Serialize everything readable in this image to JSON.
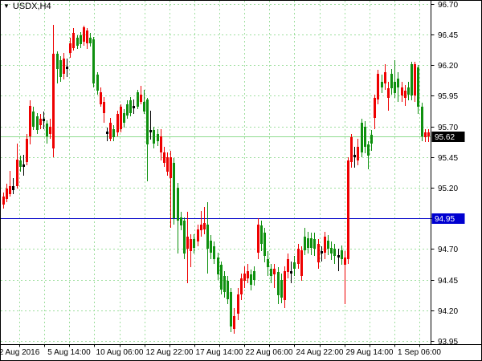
{
  "window": {
    "title": "USDX,H4",
    "dropdown_icon": "▼"
  },
  "price_axis": {
    "tick_labels": [
      "96.70",
      "96.45",
      "96.20",
      "95.95",
      "95.70",
      "95.45",
      "95.20",
      "94.95",
      "94.70",
      "94.45",
      "94.20",
      "93.95"
    ],
    "bid_tag": "95.62",
    "hline_tag": "94.95"
  },
  "time_axis": {
    "labels": [
      "2 Aug 2016",
      "5 Aug 14:00",
      "10 Aug 06:00",
      "12 Aug 22:00",
      "17 Aug 14:00",
      "22 Aug 06:00",
      "24 Aug 22:00",
      "29 Aug 14:00",
      "1 Sep 06:00"
    ]
  },
  "colors": {
    "background": "#ffffff",
    "border": "#000000",
    "grid": "#9fdf9f",
    "bid_line": "#8fdc8f",
    "hline": "#0000c8",
    "bull_bear_red": "#ee0000",
    "bull_bear_green": "#0e900e",
    "doji_black": "#000000",
    "axis_text": "#000000",
    "bid_tag_bg": "#000000",
    "bid_tag_text": "#ffffff",
    "hline_tag_bg": "#0000d0",
    "hline_tag_text": "#ffffff"
  },
  "chart_data": {
    "type": "candlestick",
    "title": "USDX,H4",
    "symbol": "USDX",
    "timeframe": "H4",
    "ylim": [
      93.95,
      96.7
    ],
    "grid_step": 0.25,
    "grid": "on",
    "bid_price": 95.62,
    "hline_price": 94.95,
    "x_labels": [
      "2 Aug 2016",
      "5 Aug 14:00",
      "10 Aug 06:00",
      "12 Aug 22:00",
      "17 Aug 14:00",
      "22 Aug 06:00",
      "24 Aug 22:00",
      "29 Aug 14:00",
      "1 Sep 06:00"
    ],
    "candle_format": [
      "body_top",
      "body_bottom",
      "high",
      "low",
      "color r=red g=green k=black-doji"
    ],
    "candles": [
      [
        95.13,
        95.06,
        95.16,
        95.03,
        "r"
      ],
      [
        95.19,
        95.11,
        95.23,
        95.08,
        "r"
      ],
      [
        95.21,
        95.15,
        95.34,
        95.13,
        "r"
      ],
      [
        95.21,
        95.18,
        95.28,
        95.15,
        "k"
      ],
      [
        95.43,
        95.21,
        95.56,
        95.19,
        "r"
      ],
      [
        95.42,
        95.37,
        95.46,
        95.33,
        "g"
      ],
      [
        95.39,
        95.37,
        95.47,
        95.3,
        "k"
      ],
      [
        95.6,
        95.41,
        95.64,
        95.38,
        "r"
      ],
      [
        95.87,
        95.62,
        95.91,
        95.55,
        "r"
      ],
      [
        95.82,
        95.7,
        95.86,
        95.67,
        "g"
      ],
      [
        95.78,
        95.67,
        95.81,
        95.64,
        "g"
      ],
      [
        95.76,
        95.71,
        95.8,
        95.68,
        "r"
      ],
      [
        95.76,
        95.74,
        95.82,
        95.68,
        "k"
      ],
      [
        95.72,
        95.62,
        95.75,
        95.56,
        "g"
      ],
      [
        95.7,
        95.64,
        95.76,
        95.6,
        "r"
      ],
      [
        96.29,
        95.52,
        96.53,
        95.45,
        "r"
      ],
      [
        96.29,
        96.17,
        96.31,
        96.05,
        "g"
      ],
      [
        96.24,
        96.1,
        96.27,
        96.06,
        "g"
      ],
      [
        96.25,
        96.13,
        96.3,
        96.08,
        "r"
      ],
      [
        96.19,
        96.17,
        96.25,
        96.1,
        "k"
      ],
      [
        96.38,
        96.3,
        96.42,
        96.26,
        "r"
      ],
      [
        96.46,
        96.34,
        96.5,
        96.32,
        "r"
      ],
      [
        96.42,
        96.36,
        96.44,
        96.33,
        "g"
      ],
      [
        96.44,
        96.37,
        96.47,
        96.34,
        "g"
      ],
      [
        96.51,
        96.39,
        96.52,
        96.36,
        "r"
      ],
      [
        96.48,
        96.38,
        96.5,
        96.33,
        "r"
      ],
      [
        96.42,
        96.38,
        96.46,
        96.35,
        "g"
      ],
      [
        96.41,
        96.05,
        96.43,
        96.02,
        "g"
      ],
      [
        96.12,
        95.99,
        96.14,
        95.96,
        "g"
      ],
      [
        95.98,
        95.88,
        96.02,
        95.86,
        "r"
      ],
      [
        95.9,
        95.81,
        95.94,
        95.73,
        "r"
      ],
      [
        95.66,
        95.64,
        95.69,
        95.58,
        "k"
      ],
      [
        95.73,
        95.6,
        95.77,
        95.58,
        "r"
      ],
      [
        95.68,
        95.61,
        95.71,
        95.58,
        "g"
      ],
      [
        95.8,
        95.65,
        95.83,
        95.62,
        "r"
      ],
      [
        95.86,
        95.68,
        95.88,
        95.65,
        "r"
      ],
      [
        95.81,
        95.73,
        95.84,
        95.69,
        "g"
      ],
      [
        95.88,
        95.79,
        95.91,
        95.76,
        "g"
      ],
      [
        95.91,
        95.81,
        95.94,
        95.78,
        "g"
      ],
      [
        95.87,
        95.85,
        95.92,
        95.8,
        "k"
      ],
      [
        95.98,
        95.86,
        96.0,
        95.84,
        "g"
      ],
      [
        95.96,
        95.9,
        96.03,
        95.88,
        "r"
      ],
      [
        95.9,
        95.82,
        96.0,
        95.8,
        "g"
      ],
      [
        95.92,
        95.55,
        95.93,
        95.25,
        "g"
      ],
      [
        95.67,
        95.65,
        95.83,
        95.59,
        "k"
      ],
      [
        95.67,
        95.56,
        95.7,
        95.52,
        "g"
      ],
      [
        95.64,
        95.58,
        95.68,
        95.54,
        "g"
      ],
      [
        95.62,
        95.49,
        95.68,
        95.42,
        "r"
      ],
      [
        95.49,
        95.4,
        95.53,
        95.37,
        "r"
      ],
      [
        95.45,
        95.33,
        95.49,
        95.3,
        "r"
      ],
      [
        95.45,
        95.28,
        95.5,
        94.87,
        "r"
      ],
      [
        95.4,
        94.95,
        95.44,
        94.9,
        "g"
      ],
      [
        95.2,
        94.93,
        95.24,
        94.66,
        "g"
      ],
      [
        94.96,
        94.89,
        95.0,
        94.85,
        "g"
      ],
      [
        94.93,
        94.66,
        94.96,
        94.62,
        "g"
      ],
      [
        94.8,
        94.7,
        95.0,
        94.42,
        "r"
      ],
      [
        94.78,
        94.68,
        94.82,
        94.55,
        "r"
      ],
      [
        94.78,
        94.71,
        94.82,
        94.66,
        "g"
      ],
      [
        94.86,
        94.76,
        94.9,
        94.72,
        "r"
      ],
      [
        94.9,
        94.85,
        95.01,
        94.8,
        "r"
      ],
      [
        94.91,
        94.86,
        95.04,
        94.82,
        "r"
      ],
      [
        94.9,
        94.7,
        95.08,
        94.5,
        "g"
      ],
      [
        94.77,
        94.67,
        94.81,
        94.62,
        "g"
      ],
      [
        94.72,
        94.62,
        94.76,
        94.58,
        "g"
      ],
      [
        94.63,
        94.49,
        94.67,
        94.45,
        "g"
      ],
      [
        94.57,
        94.37,
        94.6,
        94.33,
        "g"
      ],
      [
        94.48,
        94.35,
        94.52,
        94.3,
        "g"
      ],
      [
        94.44,
        94.29,
        94.48,
        94.25,
        "g"
      ],
      [
        94.35,
        94.07,
        94.38,
        94.02,
        "g"
      ],
      [
        94.15,
        94.05,
        94.22,
        94.01,
        "r"
      ],
      [
        94.33,
        94.17,
        94.38,
        94.12,
        "r"
      ],
      [
        94.46,
        94.33,
        94.5,
        94.28,
        "r"
      ],
      [
        94.5,
        94.44,
        94.56,
        94.38,
        "r"
      ],
      [
        94.52,
        94.46,
        94.58,
        94.42,
        "r"
      ],
      [
        94.49,
        94.41,
        94.53,
        94.36,
        "g"
      ],
      [
        94.52,
        94.45,
        94.56,
        94.4,
        "g"
      ],
      [
        94.9,
        94.67,
        94.95,
        94.62,
        "r"
      ],
      [
        94.89,
        94.74,
        94.93,
        94.68,
        "g"
      ],
      [
        94.83,
        94.64,
        94.87,
        94.59,
        "g"
      ],
      [
        94.62,
        94.55,
        94.68,
        94.48,
        "g"
      ],
      [
        94.54,
        94.48,
        94.58,
        94.42,
        "g"
      ],
      [
        94.54,
        94.49,
        94.58,
        94.38,
        "r"
      ],
      [
        94.51,
        94.32,
        94.55,
        94.25,
        "g"
      ],
      [
        94.45,
        94.3,
        94.5,
        94.26,
        "g"
      ],
      [
        94.52,
        94.28,
        94.56,
        94.22,
        "r"
      ],
      [
        94.62,
        94.51,
        94.66,
        94.46,
        "r"
      ],
      [
        94.52,
        94.5,
        94.6,
        94.42,
        "k"
      ],
      [
        94.59,
        94.54,
        94.64,
        94.48,
        "g"
      ],
      [
        94.7,
        94.58,
        94.74,
        94.54,
        "r"
      ],
      [
        94.69,
        94.48,
        94.72,
        94.44,
        "r"
      ],
      [
        94.8,
        94.69,
        94.87,
        94.65,
        "g"
      ],
      [
        94.79,
        94.71,
        94.84,
        94.66,
        "g"
      ],
      [
        94.79,
        94.71,
        94.83,
        94.65,
        "g"
      ],
      [
        94.78,
        94.7,
        94.83,
        94.64,
        "g"
      ],
      [
        94.74,
        94.59,
        94.78,
        94.54,
        "r"
      ],
      [
        94.68,
        94.66,
        94.72,
        94.6,
        "k"
      ],
      [
        94.8,
        94.67,
        94.84,
        94.62,
        "r"
      ],
      [
        94.77,
        94.7,
        94.81,
        94.65,
        "g"
      ],
      [
        94.71,
        94.66,
        94.76,
        94.61,
        "g"
      ],
      [
        94.7,
        94.64,
        94.74,
        94.58,
        "g"
      ],
      [
        94.65,
        94.63,
        94.7,
        94.52,
        "k"
      ],
      [
        94.69,
        94.62,
        94.73,
        94.57,
        "g"
      ],
      [
        94.63,
        94.57,
        94.68,
        94.25,
        "r"
      ],
      [
        95.42,
        94.62,
        95.45,
        94.58,
        "r"
      ],
      [
        95.61,
        95.41,
        95.64,
        95.36,
        "r"
      ],
      [
        95.47,
        95.45,
        95.53,
        95.36,
        "k"
      ],
      [
        95.53,
        95.42,
        95.6,
        95.38,
        "r"
      ],
      [
        95.73,
        95.49,
        95.76,
        95.45,
        "g"
      ],
      [
        95.7,
        95.53,
        95.74,
        95.48,
        "g"
      ],
      [
        95.55,
        95.46,
        95.58,
        95.35,
        "g"
      ],
      [
        95.63,
        95.56,
        95.67,
        95.5,
        "g"
      ],
      [
        95.93,
        95.77,
        95.96,
        95.68,
        "r"
      ],
      [
        96.13,
        95.92,
        96.16,
        95.88,
        "r"
      ],
      [
        96.06,
        96.02,
        96.12,
        95.97,
        "g"
      ],
      [
        96.14,
        96.05,
        96.21,
        96.0,
        "r"
      ],
      [
        96.01,
        95.93,
        96.06,
        95.83,
        "r"
      ],
      [
        96.13,
        96.01,
        96.17,
        95.96,
        "g"
      ],
      [
        96.06,
        95.97,
        96.24,
        95.93,
        "g"
      ],
      [
        96.09,
        96.02,
        96.14,
        95.9,
        "g"
      ],
      [
        96.02,
        95.95,
        96.06,
        95.9,
        "r"
      ],
      [
        95.99,
        95.93,
        96.04,
        95.87,
        "r"
      ],
      [
        96.02,
        95.96,
        96.06,
        95.91,
        "g"
      ],
      [
        96.21,
        95.95,
        96.23,
        95.91,
        "g"
      ],
      [
        96.21,
        95.95,
        96.23,
        95.9,
        "r"
      ],
      [
        96.18,
        95.86,
        96.2,
        95.8,
        "g"
      ],
      [
        95.86,
        95.62,
        95.89,
        95.58,
        "g"
      ],
      [
        95.65,
        95.61,
        95.68,
        95.57,
        "r"
      ],
      [
        95.65,
        95.62,
        95.68,
        95.57,
        "r"
      ]
    ]
  }
}
